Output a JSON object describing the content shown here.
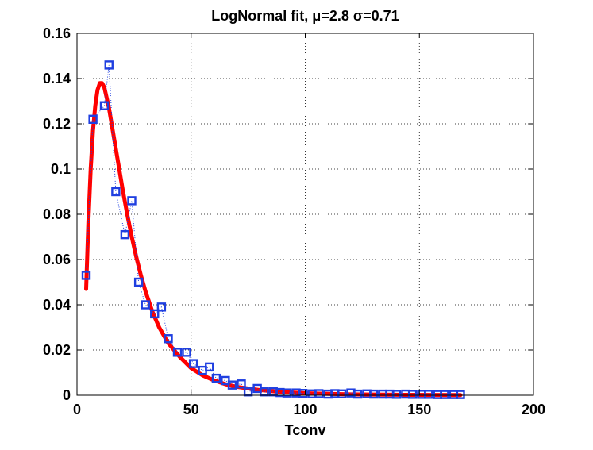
{
  "chart_data": {
    "type": "scatter",
    "title": "LogNormal fit,  μ=2.8  σ=0.71",
    "xlabel": "Tconv",
    "ylabel": "",
    "xlim": [
      0,
      200
    ],
    "ylim": [
      0,
      0.16
    ],
    "xticks": [
      0,
      50,
      100,
      150,
      200
    ],
    "xtick_labels": [
      "0",
      "50",
      "100",
      "150",
      "200"
    ],
    "yticks": [
      0,
      0.02,
      0.04,
      0.06,
      0.08,
      0.1,
      0.12,
      0.14,
      0.16
    ],
    "ytick_labels": [
      "0",
      "0.02",
      "0.04",
      "0.06",
      "0.08",
      "0.1",
      "0.12",
      "0.14",
      "0.16"
    ],
    "grid": true,
    "legend": "none",
    "series": [
      {
        "kind": "empirical",
        "marker": "square",
        "line": "dotted",
        "color": "#1f3fe0",
        "points": [
          [
            4,
            0.053
          ],
          [
            7,
            0.122
          ],
          [
            12,
            0.128
          ],
          [
            14,
            0.146
          ],
          [
            17,
            0.09
          ],
          [
            21,
            0.071
          ],
          [
            24,
            0.086
          ],
          [
            27,
            0.05
          ],
          [
            30,
            0.04
          ],
          [
            34,
            0.036
          ],
          [
            37,
            0.039
          ],
          [
            40,
            0.025
          ],
          [
            44,
            0.019
          ],
          [
            48,
            0.019
          ],
          [
            51,
            0.014
          ],
          [
            55,
            0.011
          ],
          [
            58,
            0.0125
          ],
          [
            61,
            0.0075
          ],
          [
            65,
            0.0065
          ],
          [
            68,
            0.0045
          ],
          [
            72,
            0.005
          ],
          [
            75,
            0.0015
          ],
          [
            79,
            0.003
          ],
          [
            82,
            0.0015
          ],
          [
            86,
            0.0015
          ],
          [
            89,
            0.0012
          ],
          [
            92,
            0.001
          ],
          [
            96,
            0.001
          ],
          [
            99,
            0.0008
          ],
          [
            103,
            0.0006
          ],
          [
            106,
            0.0007
          ],
          [
            110,
            0.0005
          ],
          [
            113,
            0.0007
          ],
          [
            116,
            0.0006
          ],
          [
            120,
            0.001
          ],
          [
            123,
            0.0005
          ],
          [
            127,
            0.0006
          ],
          [
            130,
            0.0005
          ],
          [
            134,
            0.0005
          ],
          [
            137,
            0.0005
          ],
          [
            140,
            0.0004
          ],
          [
            144,
            0.0005
          ],
          [
            147,
            0.0004
          ],
          [
            151,
            0.0004
          ],
          [
            154,
            0.0004
          ],
          [
            158,
            0.0003
          ],
          [
            161,
            0.0003
          ],
          [
            165,
            0.0003
          ],
          [
            168,
            0.0003
          ]
        ]
      },
      {
        "kind": "fit",
        "line": "solid",
        "color": "#ff0000",
        "points": [
          [
            4,
            0.047
          ],
          [
            5,
            0.077
          ],
          [
            6,
            0.1
          ],
          [
            7,
            0.117
          ],
          [
            8,
            0.128
          ],
          [
            9,
            0.135
          ],
          [
            10,
            0.138
          ],
          [
            11,
            0.138
          ],
          [
            12,
            0.136
          ],
          [
            14,
            0.127
          ],
          [
            16,
            0.115
          ],
          [
            18,
            0.103
          ],
          [
            20,
            0.091
          ],
          [
            22,
            0.08
          ],
          [
            24,
            0.07
          ],
          [
            26,
            0.061
          ],
          [
            28,
            0.053
          ],
          [
            30,
            0.046
          ],
          [
            33,
            0.037
          ],
          [
            36,
            0.03
          ],
          [
            40,
            0.023
          ],
          [
            45,
            0.017
          ],
          [
            50,
            0.012
          ],
          [
            55,
            0.0088
          ],
          [
            60,
            0.0066
          ],
          [
            65,
            0.0049
          ],
          [
            70,
            0.0037
          ],
          [
            80,
            0.0023
          ],
          [
            90,
            0.0014
          ],
          [
            100,
            0.0009
          ],
          [
            110,
            0.0006
          ],
          [
            120,
            0.0004
          ],
          [
            140,
            0.0002
          ],
          [
            168,
            0.0001
          ]
        ]
      }
    ]
  }
}
